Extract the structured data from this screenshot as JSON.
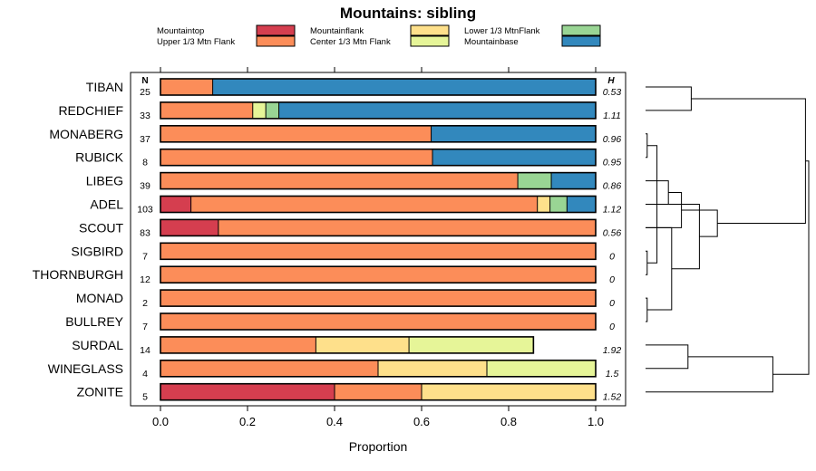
{
  "chart_data": {
    "type": "bar",
    "orientation": "horizontal",
    "stacked": true,
    "title": "Mountains: sibling",
    "xlabel": "Proportion",
    "xlim": [
      0,
      1
    ],
    "xticks": [
      "0.0",
      "0.2",
      "0.4",
      "0.6",
      "0.8",
      "1.0"
    ],
    "n_header": "N",
    "h_header": "H",
    "legend_position": "top",
    "legend": [
      {
        "name": "Mountaintop",
        "color": "#D53E4F"
      },
      {
        "name": "Upper 1/3 Mtn Flank",
        "color": "#FC8D59"
      },
      {
        "name": "Mountainflank",
        "color": "#FEE08B"
      },
      {
        "name": "Center 1/3 Mtn Flank",
        "color": "#E6F598"
      },
      {
        "name": "Lower 1/3 MtnFlank",
        "color": "#99D594"
      },
      {
        "name": "Mountainbase",
        "color": "#3288BD"
      }
    ],
    "categories": [
      "TIBAN",
      "REDCHIEF",
      "MONABERG",
      "RUBICK",
      "LIBEG",
      "ADEL",
      "SCOUT",
      "SIGBIRD",
      "THORNBURGH",
      "MONAD",
      "BULLREY",
      "SURDAL",
      "WINEGLASS",
      "ZONITE"
    ],
    "N": [
      "25",
      "33",
      "37",
      "8",
      "39",
      "103",
      "83",
      "7",
      "12",
      "2",
      "7",
      "14",
      "4",
      "5"
    ],
    "H": [
      "0.53",
      "1.11",
      "0.96",
      "0.95",
      "0.86",
      "1.12",
      "0.56",
      "0",
      "0",
      "0",
      "0",
      "1.92",
      "1.5",
      "1.52"
    ],
    "series": [
      {
        "name": "Mountaintop",
        "values": [
          0,
          0,
          0,
          0,
          0,
          0.07,
          0.133,
          0,
          0,
          0,
          0,
          0,
          0,
          0.4
        ]
      },
      {
        "name": "Upper 1/3 Mtn Flank",
        "values": [
          0.12,
          0.212,
          0.622,
          0.625,
          0.821,
          0.796,
          0.867,
          1,
          1,
          1,
          1,
          0.357,
          0.5,
          0.2
        ]
      },
      {
        "name": "Mountainflank",
        "values": [
          0,
          0,
          0,
          0,
          0,
          0.029,
          0,
          0,
          0,
          0,
          0,
          0.214,
          0.25,
          0.4
        ]
      },
      {
        "name": "Center 1/3 Mtn Flank",
        "values": [
          0,
          0.03,
          0,
          0,
          0,
          0,
          0,
          0,
          0,
          0,
          0,
          0.286,
          0.25,
          0
        ]
      },
      {
        "name": "Lower 1/3 MtnFlank",
        "values": [
          0,
          0.03,
          0,
          0,
          0.077,
          0.039,
          0,
          0,
          0,
          0,
          0,
          0,
          0,
          0
        ]
      },
      {
        "name": "Mountainbase",
        "values": [
          0.88,
          0.728,
          0.378,
          0.375,
          0.102,
          0.066,
          0,
          0,
          0,
          0,
          0,
          0,
          0,
          0
        ]
      }
    ],
    "dendrogram": {
      "type": "hierarchical-clustering",
      "leaf_order": [
        "TIBAN",
        "REDCHIEF",
        "MONABERG",
        "RUBICK",
        "LIBEG",
        "ADEL",
        "SCOUT",
        "SIGBIRD",
        "THORNBURGH",
        "MONAD",
        "BULLREY",
        "SURDAL",
        "WINEGLASS",
        "ZONITE"
      ],
      "merges": [
        {
          "a": 2,
          "b": 3,
          "height": 0.01
        },
        {
          "a": 7,
          "b": 8,
          "height": 0.01
        },
        {
          "a": 9,
          "b": 10,
          "height": 0.01
        },
        {
          "a": "g1",
          "b": "g2",
          "height": 0.07
        },
        {
          "a": 4,
          "b": 5,
          "height": 0.14
        },
        {
          "a": "g3",
          "b": 6,
          "height": 0.16
        },
        {
          "a": "g5",
          "b": 6,
          "height": 0.22
        },
        {
          "a": 11,
          "b": 12,
          "height": 0.26
        },
        {
          "a": 0,
          "b": 1,
          "height": 0.28
        },
        {
          "a": "g4",
          "b": "g6",
          "height": 0.33
        },
        {
          "a": "g7",
          "b": "g10",
          "height": 0.44
        },
        {
          "a": "g8",
          "b": 13,
          "height": 0.78
        },
        {
          "a": "g9",
          "b": "g11",
          "height": 0.98
        },
        {
          "a": "g13",
          "b": "g12",
          "height": 1.0
        }
      ]
    }
  }
}
